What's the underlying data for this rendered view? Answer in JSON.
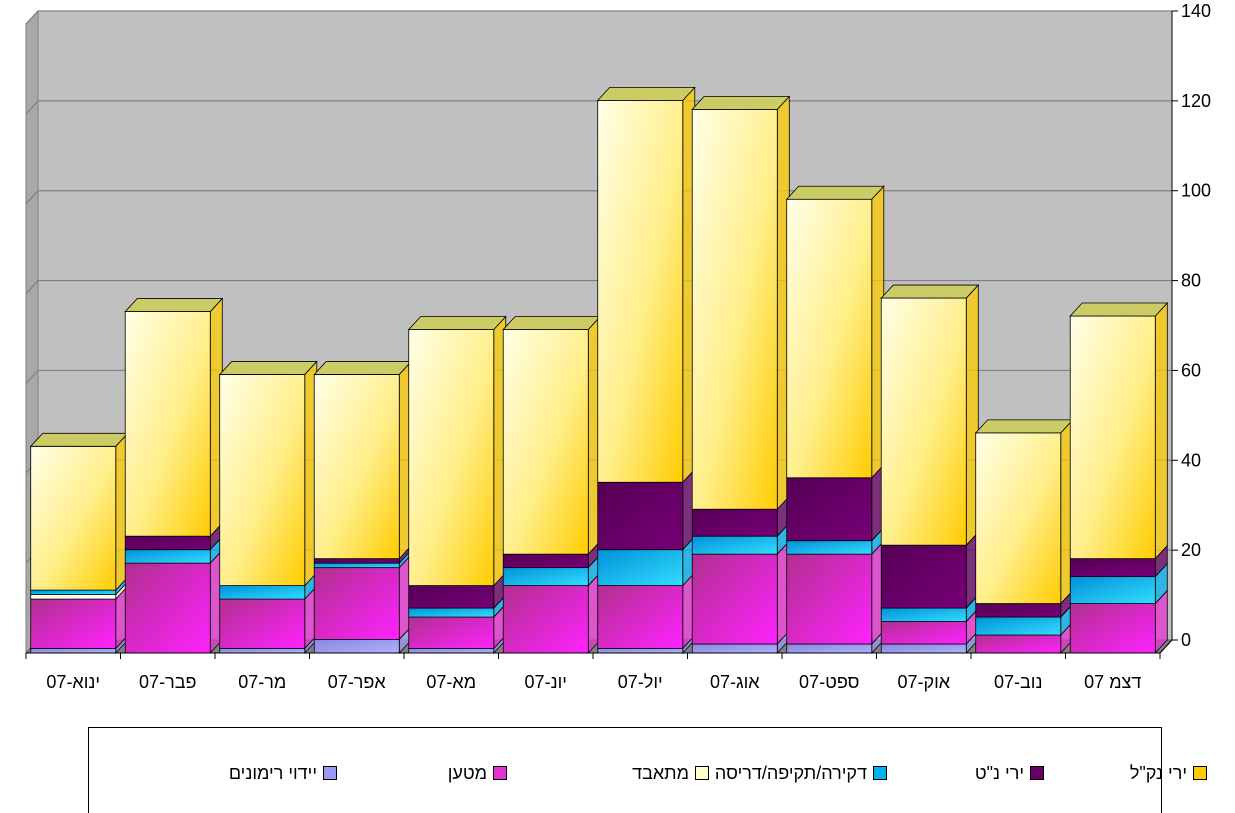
{
  "chart_data": {
    "type": "bar",
    "stacked": true,
    "three_d": true,
    "categories": [
      "ינוא-07",
      "פבר-07",
      "מר-07",
      "אפר-07",
      "מא-07",
      "יונ-07",
      "יול-07",
      "אוג-07",
      "ספט-07",
      "אוק-07",
      "נוב-07",
      "דצמ 07"
    ],
    "series": [
      {
        "name": "יידוי רימונים",
        "color": "#9a9af0",
        "values": [
          1,
          0,
          1,
          3,
          1,
          0,
          1,
          2,
          2,
          2,
          0,
          0
        ]
      },
      {
        "name": "מטען",
        "color": "#e632d2",
        "values": [
          11,
          20,
          11,
          16,
          7,
          15,
          14,
          20,
          20,
          5,
          4,
          11
        ]
      },
      {
        "name": "מתאבד",
        "color": "#ffffcc",
        "values": [
          1,
          0,
          0,
          0,
          0,
          0,
          0,
          0,
          0,
          0,
          0,
          0
        ]
      },
      {
        "name": "דקירה/תקיפה/דריסה",
        "color": "#00b0f0",
        "values": [
          1,
          3,
          3,
          1,
          2,
          4,
          8,
          4,
          3,
          3,
          4,
          6
        ]
      },
      {
        "name": "ירי נ\"ט",
        "color": "#660066",
        "values": [
          0,
          3,
          0,
          1,
          5,
          3,
          15,
          6,
          14,
          14,
          3,
          4
        ]
      },
      {
        "name": "ירי נק\"ל",
        "color": "#ffcc00",
        "values": [
          32,
          50,
          47,
          41,
          57,
          50,
          85,
          89,
          62,
          55,
          38,
          54
        ]
      }
    ],
    "y_axis": {
      "min": 0,
      "max": 140,
      "step": 20,
      "position": "right"
    },
    "ylim": [
      0,
      140
    ],
    "ticks": [
      "0",
      "20",
      "40",
      "60",
      "80",
      "100",
      "120",
      "140"
    ],
    "grid": true,
    "legend": "bottom",
    "colors": {
      "plot_wall": "#c0c0c0",
      "floor": "#808080",
      "bar_top": "#cccc66",
      "bar_side": "#9a9a33"
    }
  },
  "legend_items": [
    {
      "name": "ירי נק\"ל",
      "color": "#ffcc00"
    },
    {
      "name": "ירי נ\"ט",
      "color": "#660066"
    },
    {
      "name": "דקירה/תקיפה/דריסה",
      "color": "#00b0f0"
    },
    {
      "name": "מתאבד",
      "color": "#ffffcc"
    },
    {
      "name": "מטען",
      "color": "#e632d2"
    },
    {
      "name": "יידוי רימונים",
      "color": "#9a9af0"
    }
  ]
}
